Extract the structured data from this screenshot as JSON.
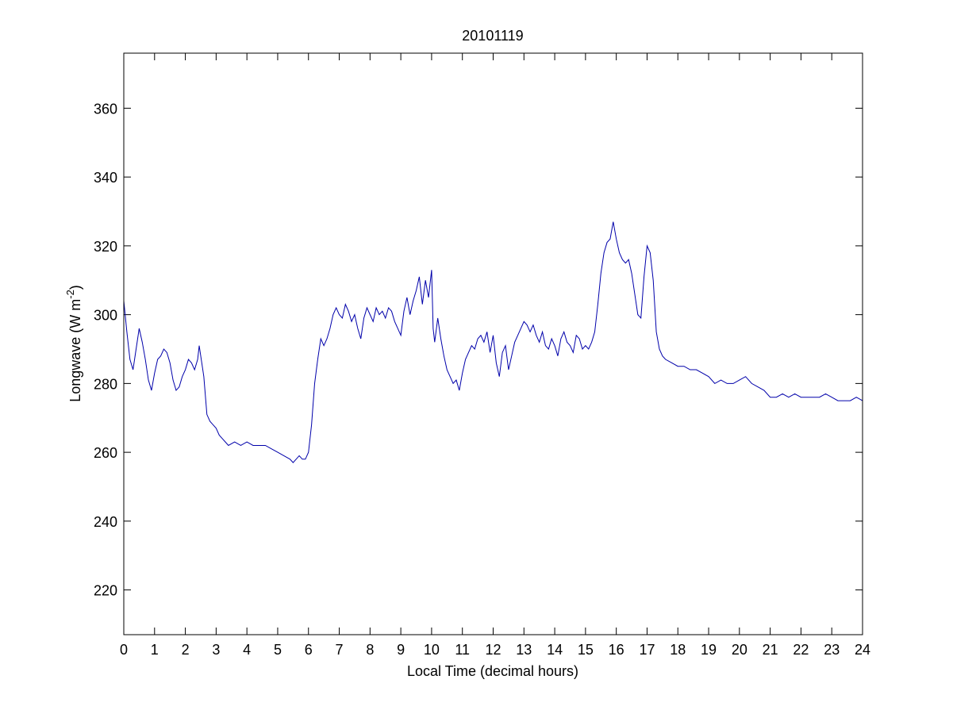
{
  "chart_data": {
    "type": "line",
    "title": "20101119",
    "xlabel": "Local Time (decimal hours)",
    "ylabel_main": "Longwave (W m",
    "ylabel_sup": "-2",
    "ylabel_close": ")",
    "xlim": [
      0,
      24
    ],
    "ylim": [
      207,
      376
    ],
    "xticks": [
      0,
      1,
      2,
      3,
      4,
      5,
      6,
      7,
      8,
      9,
      10,
      11,
      12,
      13,
      14,
      15,
      16,
      17,
      18,
      19,
      20,
      21,
      22,
      23,
      24
    ],
    "yticks": [
      220,
      240,
      260,
      280,
      300,
      320,
      340,
      360
    ],
    "grid": false,
    "series": [
      {
        "line_color": "#0000aa",
        "points": [
          [
            0.0,
            304
          ],
          [
            0.1,
            295
          ],
          [
            0.2,
            287
          ],
          [
            0.3,
            284
          ],
          [
            0.4,
            290
          ],
          [
            0.5,
            296
          ],
          [
            0.6,
            292
          ],
          [
            0.7,
            287
          ],
          [
            0.8,
            281
          ],
          [
            0.9,
            278
          ],
          [
            1.0,
            283
          ],
          [
            1.1,
            287
          ],
          [
            1.2,
            288
          ],
          [
            1.3,
            290
          ],
          [
            1.4,
            289
          ],
          [
            1.5,
            286
          ],
          [
            1.6,
            281
          ],
          [
            1.7,
            278
          ],
          [
            1.8,
            279
          ],
          [
            1.9,
            282
          ],
          [
            2.0,
            284
          ],
          [
            2.1,
            287
          ],
          [
            2.2,
            286
          ],
          [
            2.3,
            284
          ],
          [
            2.4,
            287
          ],
          [
            2.45,
            291
          ],
          [
            2.5,
            288
          ],
          [
            2.6,
            282
          ],
          [
            2.7,
            271
          ],
          [
            2.8,
            269
          ],
          [
            2.9,
            268
          ],
          [
            3.0,
            267
          ],
          [
            3.1,
            265
          ],
          [
            3.2,
            264
          ],
          [
            3.3,
            263
          ],
          [
            3.4,
            262
          ],
          [
            3.6,
            263
          ],
          [
            3.8,
            262
          ],
          [
            4.0,
            263
          ],
          [
            4.2,
            262
          ],
          [
            4.4,
            262
          ],
          [
            4.6,
            262
          ],
          [
            4.8,
            261
          ],
          [
            5.0,
            260
          ],
          [
            5.2,
            259
          ],
          [
            5.4,
            258
          ],
          [
            5.5,
            257
          ],
          [
            5.6,
            258
          ],
          [
            5.7,
            259
          ],
          [
            5.8,
            258
          ],
          [
            5.9,
            258
          ],
          [
            6.0,
            260
          ],
          [
            6.1,
            268
          ],
          [
            6.2,
            280
          ],
          [
            6.3,
            287
          ],
          [
            6.4,
            293
          ],
          [
            6.5,
            291
          ],
          [
            6.6,
            293
          ],
          [
            6.7,
            296
          ],
          [
            6.8,
            300
          ],
          [
            6.9,
            302
          ],
          [
            7.0,
            300
          ],
          [
            7.1,
            299
          ],
          [
            7.2,
            303
          ],
          [
            7.3,
            301
          ],
          [
            7.4,
            298
          ],
          [
            7.5,
            300
          ],
          [
            7.6,
            296
          ],
          [
            7.7,
            293
          ],
          [
            7.8,
            299
          ],
          [
            7.9,
            302
          ],
          [
            8.0,
            300
          ],
          [
            8.1,
            298
          ],
          [
            8.2,
            302
          ],
          [
            8.3,
            300
          ],
          [
            8.4,
            301
          ],
          [
            8.5,
            299
          ],
          [
            8.6,
            302
          ],
          [
            8.7,
            301
          ],
          [
            8.8,
            298
          ],
          [
            8.9,
            296
          ],
          [
            9.0,
            294
          ],
          [
            9.1,
            301
          ],
          [
            9.2,
            305
          ],
          [
            9.3,
            300
          ],
          [
            9.4,
            304
          ],
          [
            9.5,
            307
          ],
          [
            9.6,
            311
          ],
          [
            9.7,
            303
          ],
          [
            9.8,
            310
          ],
          [
            9.9,
            305
          ],
          [
            10.0,
            313
          ],
          [
            10.05,
            296
          ],
          [
            10.1,
            292
          ],
          [
            10.2,
            299
          ],
          [
            10.3,
            293
          ],
          [
            10.4,
            288
          ],
          [
            10.5,
            284
          ],
          [
            10.6,
            282
          ],
          [
            10.7,
            280
          ],
          [
            10.8,
            281
          ],
          [
            10.9,
            278
          ],
          [
            11.0,
            283
          ],
          [
            11.1,
            287
          ],
          [
            11.2,
            289
          ],
          [
            11.3,
            291
          ],
          [
            11.4,
            290
          ],
          [
            11.5,
            293
          ],
          [
            11.6,
            294
          ],
          [
            11.7,
            292
          ],
          [
            11.8,
            295
          ],
          [
            11.9,
            289
          ],
          [
            12.0,
            294
          ],
          [
            12.1,
            286
          ],
          [
            12.2,
            282
          ],
          [
            12.3,
            289
          ],
          [
            12.4,
            291
          ],
          [
            12.5,
            284
          ],
          [
            12.6,
            288
          ],
          [
            12.7,
            292
          ],
          [
            12.8,
            294
          ],
          [
            12.9,
            296
          ],
          [
            13.0,
            298
          ],
          [
            13.1,
            297
          ],
          [
            13.2,
            295
          ],
          [
            13.3,
            297
          ],
          [
            13.4,
            294
          ],
          [
            13.5,
            292
          ],
          [
            13.6,
            295
          ],
          [
            13.7,
            291
          ],
          [
            13.8,
            290
          ],
          [
            13.9,
            293
          ],
          [
            14.0,
            291
          ],
          [
            14.1,
            288
          ],
          [
            14.2,
            293
          ],
          [
            14.3,
            295
          ],
          [
            14.4,
            292
          ],
          [
            14.5,
            291
          ],
          [
            14.6,
            289
          ],
          [
            14.7,
            294
          ],
          [
            14.8,
            293
          ],
          [
            14.9,
            290
          ],
          [
            15.0,
            291
          ],
          [
            15.1,
            290
          ],
          [
            15.2,
            292
          ],
          [
            15.3,
            295
          ],
          [
            15.4,
            303
          ],
          [
            15.5,
            312
          ],
          [
            15.6,
            318
          ],
          [
            15.7,
            321
          ],
          [
            15.8,
            322
          ],
          [
            15.9,
            327
          ],
          [
            16.0,
            322
          ],
          [
            16.1,
            318
          ],
          [
            16.2,
            316
          ],
          [
            16.3,
            315
          ],
          [
            16.4,
            316
          ],
          [
            16.5,
            312
          ],
          [
            16.6,
            306
          ],
          [
            16.7,
            300
          ],
          [
            16.8,
            299
          ],
          [
            16.9,
            311
          ],
          [
            17.0,
            320
          ],
          [
            17.1,
            318
          ],
          [
            17.2,
            310
          ],
          [
            17.3,
            295
          ],
          [
            17.4,
            290
          ],
          [
            17.5,
            288
          ],
          [
            17.6,
            287
          ],
          [
            17.8,
            286
          ],
          [
            18.0,
            285
          ],
          [
            18.2,
            285
          ],
          [
            18.4,
            284
          ],
          [
            18.6,
            284
          ],
          [
            18.8,
            283
          ],
          [
            19.0,
            282
          ],
          [
            19.2,
            280
          ],
          [
            19.4,
            281
          ],
          [
            19.6,
            280
          ],
          [
            19.8,
            280
          ],
          [
            20.0,
            281
          ],
          [
            20.2,
            282
          ],
          [
            20.4,
            280
          ],
          [
            20.6,
            279
          ],
          [
            20.8,
            278
          ],
          [
            21.0,
            276
          ],
          [
            21.2,
            276
          ],
          [
            21.4,
            277
          ],
          [
            21.6,
            276
          ],
          [
            21.8,
            277
          ],
          [
            22.0,
            276
          ],
          [
            22.2,
            276
          ],
          [
            22.4,
            276
          ],
          [
            22.6,
            276
          ],
          [
            22.8,
            277
          ],
          [
            23.0,
            276
          ],
          [
            23.2,
            275
          ],
          [
            23.4,
            275
          ],
          [
            23.6,
            275
          ],
          [
            23.8,
            276
          ],
          [
            24.0,
            275
          ]
        ]
      }
    ]
  }
}
